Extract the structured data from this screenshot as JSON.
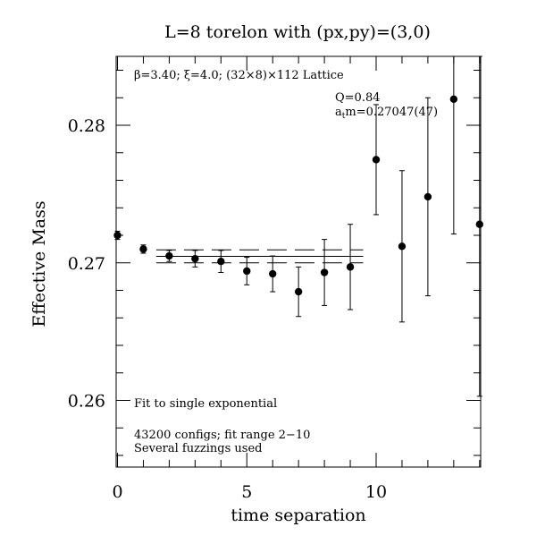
{
  "chart_data": {
    "type": "scatter",
    "title": "L=8 torelon with (px,py)=(3,0)",
    "xlabel": "time separation",
    "ylabel": "Effective Mass",
    "xlim": [
      0,
      14
    ],
    "ylim": [
      0.255,
      0.285
    ],
    "x_ticks": [
      0,
      5,
      10
    ],
    "x_tick_labels": [
      "0",
      "5",
      "10"
    ],
    "y_ticks": [
      0.26,
      0.27,
      0.28
    ],
    "y_tick_labels": [
      "0.26",
      "0.27",
      "0.28"
    ],
    "grid": false,
    "legend": "none",
    "annotations": {
      "lattice": "β=3.40; ξ=4.0; (32×8)×112 Lattice",
      "q_value": "Q=0.84",
      "mass_prefix": "a",
      "mass_sub": "t",
      "mass_suffix": "m=0.27047(47)",
      "fit_note": "Fit to single exponential",
      "configs_note": "43200 configs; fit range 2−10",
      "fuzz_note": "Several fuzzings used"
    },
    "points": [
      {
        "x": 0,
        "y": 0.272,
        "err": 0.0003
      },
      {
        "x": 1,
        "y": 0.271,
        "err": 0.0003
      },
      {
        "x": 2,
        "y": 0.2705,
        "err": 0.0004
      },
      {
        "x": 3,
        "y": 0.2703,
        "err": 0.0006
      },
      {
        "x": 4,
        "y": 0.2701,
        "err": 0.0008
      },
      {
        "x": 5,
        "y": 0.2694,
        "err": 0.001
      },
      {
        "x": 6,
        "y": 0.2692,
        "err": 0.0013
      },
      {
        "x": 7,
        "y": 0.2679,
        "err": 0.0018
      },
      {
        "x": 8,
        "y": 0.2693,
        "err": 0.0024
      },
      {
        "x": 9,
        "y": 0.2697,
        "err": 0.0031
      },
      {
        "x": 10,
        "y": 0.2775,
        "err": 0.004
      },
      {
        "x": 11,
        "y": 0.2712,
        "err": 0.0055
      },
      {
        "x": 12,
        "y": 0.2748,
        "err": 0.0072
      },
      {
        "x": 13,
        "y": 0.2819,
        "err": 0.0098
      },
      {
        "x": 14,
        "y": 0.2728,
        "err": 0.0125
      }
    ],
    "fit": {
      "x_range": [
        1.5,
        9.5
      ],
      "central": 0.27047,
      "error": 0.00047
    }
  }
}
